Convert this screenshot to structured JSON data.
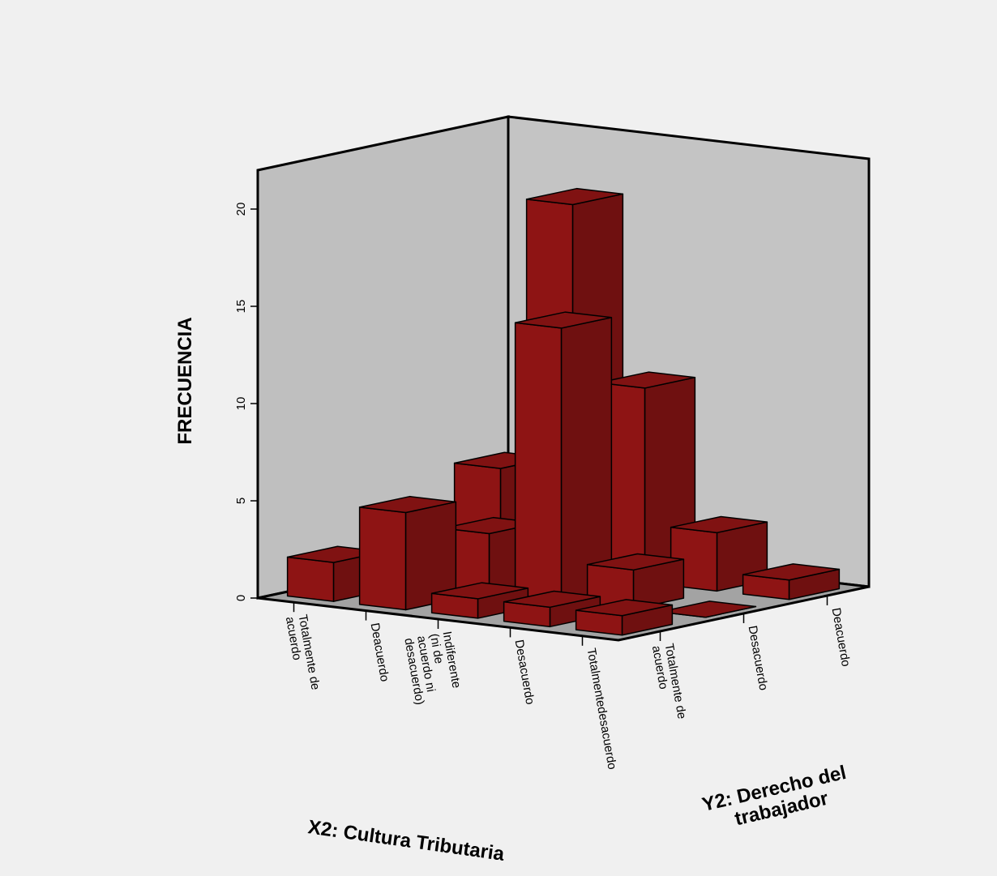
{
  "chart_data": {
    "type": "bar3d",
    "z_label": "FRECUENCIA",
    "x_label": "X2: Cultura Tributaria",
    "y_label": "Y2: Derecho del trabajador",
    "categories": [
      "Totalmente de acuerdo",
      "Deacuerdo",
      "Indiferente (ni de acuerdo ni desacuerdo)",
      "Desacuerdo",
      "Totalmentedesacuerdo"
    ],
    "series": [
      {
        "name": "Totalmente de acuerdo",
        "values": [
          2,
          5,
          1,
          1,
          1
        ]
      },
      {
        "name": "Desacuerdo",
        "values": [
          1,
          3,
          14,
          2,
          0
        ]
      },
      {
        "name": "Deacuerdo",
        "values": [
          5,
          19,
          10,
          3,
          1
        ]
      }
    ],
    "color": "#8e1414",
    "zlim": [
      0,
      22
    ],
    "zticks": [
      0,
      5,
      10,
      15,
      20
    ]
  }
}
